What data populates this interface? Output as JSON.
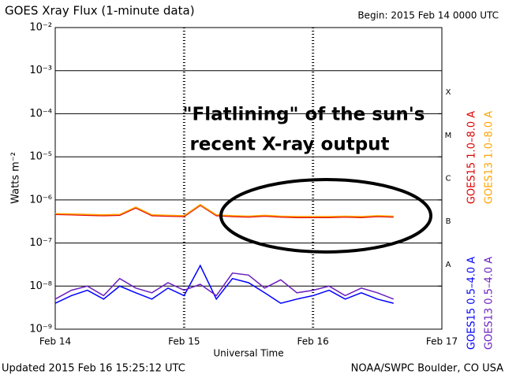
{
  "chart_data": {
    "type": "line",
    "title": "GOES Xray Flux (1-minute data)",
    "subtitle": "Begin:  2015 Feb 14 0000 UTC",
    "y_label": "Watts m⁻²",
    "x_label": "Universal Time",
    "footer_left": "Updated 2015 Feb 16 15:25:12 UTC",
    "footer_right": "NOAA/SWPC Boulder, CO USA",
    "annotation": [
      "\"Flatlining\" of the sun's",
      "recent X-ray output"
    ],
    "log_scale": true,
    "grid": true,
    "ylim": [
      1e-09,
      0.01
    ],
    "yticks": [
      {
        "value": 1e-09,
        "label": "10⁻⁹"
      },
      {
        "value": 1e-08,
        "label": "10⁻⁸"
      },
      {
        "value": 1e-07,
        "label": "10⁻⁷"
      },
      {
        "value": 1e-06,
        "label": "10⁻⁶"
      },
      {
        "value": 1e-05,
        "label": "10⁻⁵"
      },
      {
        "value": 0.0001,
        "label": "10⁻⁴"
      },
      {
        "value": 0.001,
        "label": "10⁻³"
      },
      {
        "value": 0.01,
        "label": "10⁻²"
      }
    ],
    "xlim": [
      "2015-02-14 00:00",
      "2015-02-17 00:00"
    ],
    "xticks": [
      {
        "value": "2015-02-14 00:00",
        "label": "Feb 14"
      },
      {
        "value": "2015-02-15 00:00",
        "label": "Feb 15"
      },
      {
        "value": "2015-02-16 00:00",
        "label": "Feb 16"
      },
      {
        "value": "2015-02-17 00:00",
        "label": "Feb 17"
      }
    ],
    "flare_classes": [
      {
        "label": "X",
        "value": 0.0001
      },
      {
        "label": "M",
        "value": 1e-05
      },
      {
        "label": "C",
        "value": 1e-06
      },
      {
        "label": "B",
        "value": 1e-07
      },
      {
        "label": "A",
        "value": 1e-08
      }
    ],
    "x": [
      "2015-02-14 00:00",
      "2015-02-14 03:00",
      "2015-02-14 06:00",
      "2015-02-14 09:00",
      "2015-02-14 12:00",
      "2015-02-14 15:00",
      "2015-02-14 18:00",
      "2015-02-14 21:00",
      "2015-02-15 00:00",
      "2015-02-15 03:00",
      "2015-02-15 06:00",
      "2015-02-15 09:00",
      "2015-02-15 12:00",
      "2015-02-15 15:00",
      "2015-02-15 18:00",
      "2015-02-15 21:00",
      "2015-02-16 00:00",
      "2015-02-16 03:00",
      "2015-02-16 06:00",
      "2015-02-16 09:00",
      "2015-02-16 12:00",
      "2015-02-16 15:00"
    ],
    "series": [
      {
        "name": "GOES15 1.0–8.0 A",
        "color": "#e00000",
        "values": [
          4.6e-07,
          4.5e-07,
          4.4e-07,
          4.3e-07,
          4.4e-07,
          6.5e-07,
          4.3e-07,
          4.2e-07,
          4.1e-07,
          7.5e-07,
          4.3e-07,
          4.1e-07,
          4e-07,
          4.2e-07,
          4e-07,
          3.9e-07,
          3.9e-07,
          3.9e-07,
          4e-07,
          3.9e-07,
          4.1e-07,
          4e-07
        ]
      },
      {
        "name": "GOES13 1.0–8.0 A",
        "color": "#ffa500",
        "values": [
          4.8e-07,
          4.7e-07,
          4.6e-07,
          4.5e-07,
          4.6e-07,
          6.8e-07,
          4.5e-07,
          4.4e-07,
          4.3e-07,
          7.8e-07,
          4.5e-07,
          4.3e-07,
          4.2e-07,
          4.4e-07,
          4.2e-07,
          4.1e-07,
          4.1e-07,
          4.1e-07,
          4.2e-07,
          4.1e-07,
          4.3e-07,
          4.2e-07
        ]
      },
      {
        "name": "GOES15 0.5–4.0 A",
        "color": "#0000ff",
        "values": [
          4e-09,
          6e-09,
          8e-09,
          5e-09,
          1e-08,
          7e-09,
          5e-09,
          9e-09,
          6e-09,
          3e-08,
          5e-09,
          1.5e-08,
          1.2e-08,
          7e-09,
          4e-09,
          5e-09,
          6e-09,
          8e-09,
          5e-09,
          7e-09,
          5e-09,
          4e-09
        ]
      },
      {
        "name": "GOES13 0.5–4.0 A",
        "color": "#6a1fbf",
        "values": [
          5e-09,
          8e-09,
          1e-08,
          6e-09,
          1.5e-08,
          9e-09,
          7e-09,
          1.2e-08,
          8e-09,
          1.1e-08,
          6e-09,
          2e-08,
          1.8e-08,
          9e-09,
          1.4e-08,
          7e-09,
          8e-09,
          1e-08,
          6e-09,
          9e-09,
          7e-09,
          5e-09
        ]
      }
    ]
  }
}
